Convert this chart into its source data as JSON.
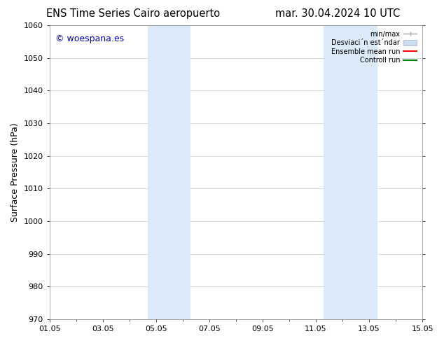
{
  "title_left": "ENS Time Series Cairo aeropuerto",
  "title_right": "mar. 30.04.2024 10 UTC",
  "ylabel": "Surface Pressure (hPa)",
  "ylim": [
    970,
    1060
  ],
  "yticks": [
    970,
    980,
    990,
    1000,
    1010,
    1020,
    1030,
    1040,
    1050,
    1060
  ],
  "xlim": [
    0,
    14
  ],
  "xtick_labels": [
    "01.05",
    "03.05",
    "05.05",
    "07.05",
    "09.05",
    "11.05",
    "13.05",
    "15.05"
  ],
  "xtick_positions": [
    0,
    2,
    4,
    6,
    8,
    10,
    12,
    14
  ],
  "shaded_regions": [
    {
      "start": 3.7,
      "end": 5.3,
      "color": "#daeaf8"
    },
    {
      "start": 10.3,
      "end": 12.3,
      "color": "#daeaf8"
    }
  ],
  "watermark_text": "© woespana.es",
  "watermark_color": "#0000bb",
  "background_color": "#ffffff",
  "axes_bg_color": "#ffffff",
  "grid_color": "#cccccc",
  "legend_minmax_color": "#aaaaaa",
  "legend_std_color": "#c8dff0",
  "legend_mean_color": "#ff0000",
  "legend_ctrl_color": "#008000",
  "legend_label_minmax": "min/max",
  "legend_label_std": "Desviaci´n est´ndar",
  "legend_label_mean": "Ensemble mean run",
  "legend_label_ctrl": "Controll run",
  "title_fontsize": 10.5,
  "tick_fontsize": 8,
  "label_fontsize": 9,
  "watermark_fontsize": 9
}
